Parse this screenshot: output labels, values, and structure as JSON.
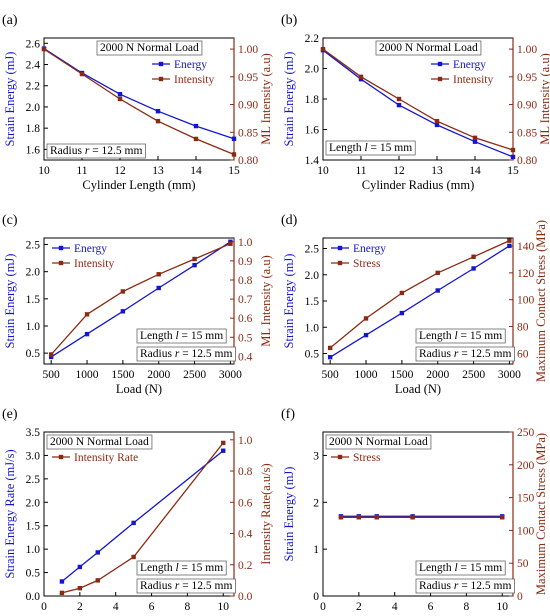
{
  "colors": {
    "energy": "#1515d0",
    "intensity": "#8b2a12",
    "axis": "#000000"
  },
  "chart_data": [
    {
      "type": "line",
      "panel_label": "(a)",
      "xlabel": "Cylinder  Length (mm)",
      "ylabel_left": "Strain Energy (mJ)",
      "ylabel_right": "ML Intensity (a.u)",
      "xlim": [
        10,
        15
      ],
      "xticks": [
        10,
        11,
        12,
        13,
        14,
        15
      ],
      "ylim_left": [
        1.5,
        2.65
      ],
      "yticks_left": [
        1.6,
        1.8,
        2.0,
        2.2,
        2.4,
        2.6
      ],
      "ylim_right": [
        0.8,
        1.02
      ],
      "yticks_right": [
        0.8,
        0.85,
        0.9,
        0.95,
        1.0
      ],
      "ytick_fmt_right": 2,
      "x": [
        10,
        11,
        12,
        13,
        14,
        15
      ],
      "series": [
        {
          "name": "Energy",
          "axis": "left",
          "marker": "square",
          "values": [
            2.55,
            2.32,
            2.12,
            1.96,
            1.82,
            1.7
          ]
        },
        {
          "name": "Intensity",
          "axis": "right",
          "marker": "square",
          "values": [
            1.0,
            0.955,
            0.91,
            0.87,
            0.838,
            0.81
          ]
        }
      ],
      "legend": "right",
      "annotations": [
        "2000 N Normal Load",
        "Radius r = 12.5 mm"
      ]
    },
    {
      "type": "line",
      "panel_label": "(b)",
      "xlabel": "Cylinder Radius (mm)",
      "ylabel_left": "Strain Energy (mJ)",
      "ylabel_right": "ML Intensity (a.u)",
      "xlim": [
        10,
        15
      ],
      "xticks": [
        10,
        11,
        12,
        13,
        14,
        15
      ],
      "ylim_left": [
        1.4,
        2.2
      ],
      "yticks_left": [
        1.4,
        1.6,
        1.8,
        2.0,
        2.2
      ],
      "ylim_right": [
        0.8,
        1.02
      ],
      "yticks_right": [
        0.8,
        0.85,
        0.9,
        0.95,
        1.0
      ],
      "ytick_fmt_right": 2,
      "x": [
        10,
        11,
        12,
        13,
        14,
        15
      ],
      "series": [
        {
          "name": "Energy",
          "axis": "left",
          "marker": "square",
          "values": [
            2.12,
            1.93,
            1.76,
            1.63,
            1.52,
            1.42
          ]
        },
        {
          "name": "Intensity",
          "axis": "right",
          "marker": "square",
          "values": [
            1.0,
            0.95,
            0.91,
            0.87,
            0.84,
            0.818
          ]
        }
      ],
      "legend": "right",
      "annotations": [
        "2000 N Normal Load",
        "Length l = 15 mm"
      ]
    },
    {
      "type": "line",
      "panel_label": "(c)",
      "xlabel": "Load (N)",
      "ylabel_left": "Strain Energy (mJ)",
      "ylabel_right": "ML Intensity (a.u)",
      "xlim": [
        400,
        3050
      ],
      "xticks": [
        500,
        1000,
        1500,
        2000,
        2500,
        3000
      ],
      "ylim_left": [
        0.3,
        2.62
      ],
      "yticks_left": [
        0.5,
        1.0,
        1.5,
        2.0,
        2.5
      ],
      "ylim_right": [
        0.36,
        1.02
      ],
      "yticks_right": [
        0.4,
        0.5,
        0.6,
        0.7,
        0.8,
        0.9,
        1.0
      ],
      "ytick_fmt_right": 1,
      "x": [
        500,
        1000,
        1500,
        2000,
        2500,
        3000
      ],
      "series": [
        {
          "name": "Energy",
          "axis": "left",
          "marker": "square",
          "values": [
            0.43,
            0.85,
            1.27,
            1.7,
            2.12,
            2.55
          ]
        },
        {
          "name": "Intensity",
          "axis": "right",
          "marker": "square",
          "values": [
            0.41,
            0.62,
            0.74,
            0.83,
            0.91,
            0.99
          ]
        }
      ],
      "legend": "left",
      "annotations": [
        "Length l = 15 mm",
        "Radius r = 12.5 mm"
      ]
    },
    {
      "type": "line",
      "panel_label": "(d)",
      "xlabel": "Load (N)",
      "ylabel_left": "Strain Energy (mJ)",
      "ylabel_right": "Maximum Contact Stress (MPa)",
      "xlim": [
        400,
        3050
      ],
      "xticks": [
        500,
        1000,
        1500,
        2000,
        2500,
        3000
      ],
      "ylim_left": [
        0.3,
        2.7
      ],
      "yticks_left": [
        0.5,
        1.0,
        1.5,
        2.0,
        2.5
      ],
      "ylim_right": [
        52,
        146
      ],
      "yticks_right": [
        60,
        80,
        100,
        120,
        140
      ],
      "ytick_fmt_right": 0,
      "x": [
        500,
        1000,
        1500,
        2000,
        2500,
        3000
      ],
      "series": [
        {
          "name": "Energy",
          "axis": "left",
          "marker": "square",
          "values": [
            0.43,
            0.85,
            1.27,
            1.7,
            2.12,
            2.55
          ]
        },
        {
          "name": "Stress",
          "axis": "right",
          "marker": "square",
          "values": [
            64,
            86,
            105,
            120,
            132,
            144
          ]
        }
      ],
      "legend": "left",
      "annotations": [
        "Length l = 15 mm",
        "Radius r = 12.5 mm"
      ]
    },
    {
      "type": "line",
      "panel_label": "(e)",
      "xlabel": "Crosshead Speed (mm/min)",
      "ylabel_left": "Strain Energy Rate (mJ/s)",
      "ylabel_right": "Intensity Rate(a.u/s)",
      "xlim": [
        0,
        10.6
      ],
      "xticks": [
        0,
        2,
        4,
        6,
        8,
        10
      ],
      "ylim_left": [
        0,
        3.5
      ],
      "yticks_left": [
        0.0,
        0.5,
        1.0,
        1.5,
        2.0,
        2.5,
        3.0,
        3.5
      ],
      "ylim_right": [
        0,
        1.05
      ],
      "yticks_right": [
        0.0,
        0.2,
        0.4,
        0.6,
        0.8,
        1.0
      ],
      "ytick_fmt_right": 1,
      "x": [
        1,
        2,
        3,
        5,
        10
      ],
      "series": [
        {
          "name": "Energy Rate",
          "axis": "left",
          "marker": "square",
          "values": [
            0.31,
            0.62,
            0.93,
            1.56,
            3.1
          ]
        },
        {
          "name": "Intensity Rate",
          "axis": "right",
          "marker": "square",
          "values": [
            0.02,
            0.05,
            0.1,
            0.25,
            0.98
          ]
        }
      ],
      "legend": "left",
      "annotations": [
        "2000 N Normal Load",
        "Length l = 15 mm",
        "Radius r = 12.5 mm"
      ]
    },
    {
      "type": "line",
      "panel_label": "(f)",
      "xlabel": "Crosshead Speed  (mm/min)",
      "ylabel_left": "Strain Energy  (mJ)",
      "ylabel_right": "Maximum Contact Stress (MPa)",
      "xlim": [
        0,
        10.6
      ],
      "xticks": [
        0,
        2,
        4,
        6,
        8,
        10
      ],
      "ylim_left": [
        0,
        3.5
      ],
      "yticks_left": [
        0,
        1,
        2,
        3
      ],
      "ylim_right": [
        0,
        250
      ],
      "yticks_right": [
        0,
        50,
        100,
        150,
        200,
        250
      ],
      "ytick_fmt_right": 0,
      "x": [
        1,
        2,
        3,
        5,
        10
      ],
      "series": [
        {
          "name": "Energy",
          "axis": "left",
          "marker": "square",
          "values": [
            1.7,
            1.7,
            1.7,
            1.7,
            1.7
          ]
        },
        {
          "name": "Stress",
          "axis": "right",
          "marker": "square",
          "values": [
            120,
            120,
            120,
            120,
            120
          ]
        }
      ],
      "legend": "left",
      "annotations": [
        "2000 N Normal Load",
        "Length l = 15 mm",
        "Radius r = 12.5 mm"
      ]
    }
  ]
}
